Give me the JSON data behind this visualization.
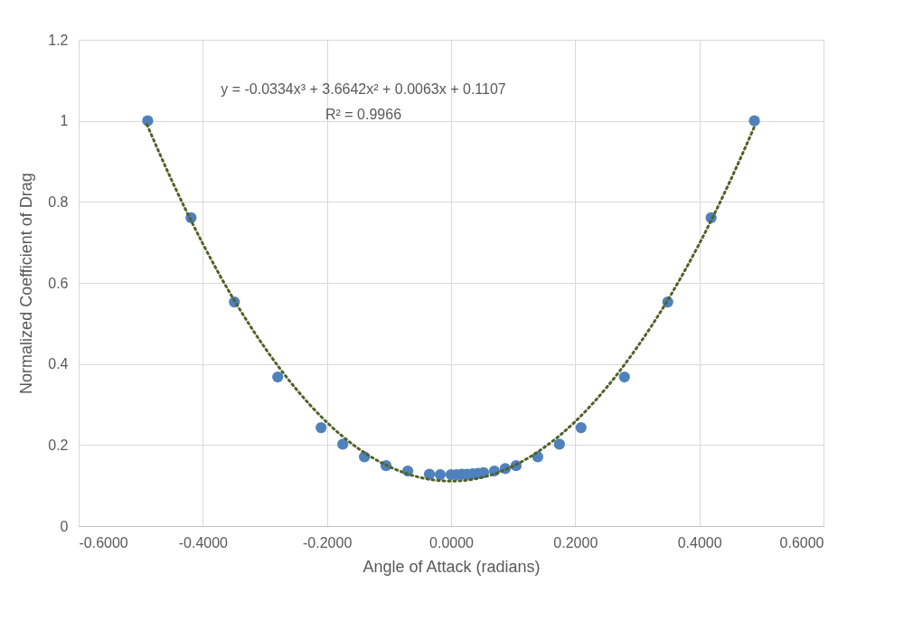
{
  "chart_data": {
    "type": "scatter",
    "xlabel": "Angle of Attack (radians)",
    "ylabel": "Normalized Coefficient of Drag",
    "x": [
      -0.4887,
      -0.4189,
      -0.3491,
      -0.2793,
      -0.2094,
      -0.1745,
      -0.1396,
      -0.1047,
      -0.0698,
      -0.0349,
      -0.0175,
      0.0,
      0.0087,
      0.0175,
      0.0262,
      0.0349,
      0.0436,
      0.0524,
      0.0698,
      0.0873,
      0.1047,
      0.1396,
      0.1745,
      0.2094,
      0.2793,
      0.3491,
      0.4189,
      0.4887
    ],
    "series": [
      {
        "color": "#4f81bd",
        "marker": "circle",
        "values": [
          1.0,
          0.761,
          0.553,
          0.368,
          0.243,
          0.202,
          0.171,
          0.149,
          0.136,
          0.128,
          0.127,
          0.127,
          0.127,
          0.128,
          0.128,
          0.129,
          0.13,
          0.132,
          0.136,
          0.142,
          0.149,
          0.171,
          0.202,
          0.243,
          0.368,
          0.553,
          0.761,
          1.0
        ]
      },
      {
        "type": "line",
        "color": "#4f6228",
        "marker": "none",
        "line_style": "dotted",
        "x": [
          -0.49,
          -0.45,
          -0.4,
          -0.35,
          -0.3,
          -0.25,
          -0.2,
          -0.15,
          -0.1,
          -0.05,
          0.0,
          0.05,
          0.1,
          0.15,
          0.2,
          0.25,
          0.3,
          0.35,
          0.4,
          0.45,
          0.49
        ],
        "values": [
          0.991,
          0.853,
          0.697,
          0.559,
          0.44,
          0.339,
          0.256,
          0.192,
          0.147,
          0.12,
          0.111,
          0.12,
          0.148,
          0.194,
          0.258,
          0.341,
          0.442,
          0.56,
          0.697,
          0.853,
          0.99
        ]
      }
    ],
    "xlim": [
      -0.6,
      0.6
    ],
    "ylim": [
      0,
      1.2
    ],
    "xticks": [
      {
        "value": -0.6,
        "label": "-0.6000"
      },
      {
        "value": -0.4,
        "label": "-0.4000"
      },
      {
        "value": -0.2,
        "label": "-0.2000"
      },
      {
        "value": 0,
        "label": "0.0000"
      },
      {
        "value": 0.2,
        "label": "0.2000"
      },
      {
        "value": 0.4,
        "label": "0.4000"
      },
      {
        "value": 0.6,
        "label": "0.6000"
      }
    ],
    "yticks": [
      0,
      0.2,
      0.4,
      0.6,
      0.8,
      1,
      1.2
    ],
    "grid": true,
    "annotations": [
      "y = -0.0334x³ + 3.6642x² + 0.0063x + 0.1107",
      "R² = 0.9966"
    ]
  }
}
